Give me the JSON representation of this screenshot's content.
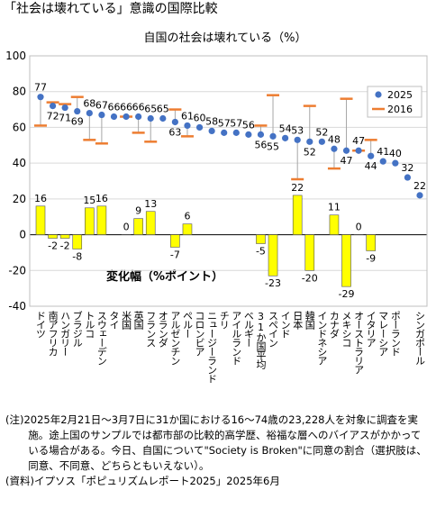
{
  "chart_data": {
    "type": "dot-bar",
    "title": "「社会は壊れている」意識の国際比較",
    "subtitle": "自国の社会は壊れている（%）",
    "bar_label": "変化幅（%ポイント）",
    "categories": [
      "ドイツ",
      "南アフリカ",
      "ハンガリー",
      "ブラジル",
      "トルコ",
      "スウェーデン",
      "タイ",
      "米国",
      "英国",
      "フランス",
      "オランダ",
      "アルゼンチン",
      "ペルー",
      "コロンビア",
      "ニュージーランド",
      "チリ",
      "アイルランド",
      "ベルギー",
      "31か国平均",
      "スペイン",
      "インド",
      "日本",
      "韓国",
      "インドネシア",
      "カナダ",
      "メキシコ",
      "オーストラリア",
      "イタリア",
      "マレーシア",
      "ポーランド",
      null,
      "シンガポール"
    ],
    "series": [
      {
        "name": "2025",
        "color": "#4472c4",
        "values": [
          77,
          72,
          71,
          69,
          68,
          67,
          66,
          66,
          66,
          65,
          65,
          63,
          61,
          60,
          58,
          57,
          57,
          56,
          56,
          55,
          54,
          53,
          52,
          52,
          48,
          47,
          47,
          44,
          41,
          40,
          32,
          22
        ]
      },
      {
        "name": "2016",
        "color": "#ed7d31",
        "values": [
          61,
          74,
          73,
          77,
          53,
          51,
          null,
          66,
          57,
          52,
          null,
          70,
          55,
          null,
          null,
          null,
          null,
          null,
          61,
          78,
          null,
          31,
          72,
          null,
          37,
          76,
          47,
          53,
          null,
          null,
          null,
          null
        ]
      },
      {
        "name": "変化幅",
        "color": "#ffff00",
        "values": [
          16,
          -2,
          -2,
          -8,
          15,
          16,
          null,
          0,
          9,
          13,
          null,
          -7,
          6,
          null,
          null,
          null,
          null,
          null,
          -5,
          -23,
          null,
          22,
          -20,
          null,
          11,
          -29,
          0,
          -9,
          null,
          null,
          null,
          null
        ]
      }
    ],
    "ylim": [
      -40,
      100
    ],
    "yticks": [
      -40,
      -20,
      0,
      20,
      40,
      60,
      80,
      100
    ],
    "grid": true,
    "legend": "upper right",
    "note": "(注)2025年2月21日～3月7日に31か国における16～74歳の23,228人を対象に調査を実施。途上国のサンプルでは都市部の比較的高学歴、裕福な層へのバイアスがかかっている場合がある。今日、自国について\"Society is Broken\"に同意の割合（選択肢は、同意、不同意、どちらともいえない）。",
    "source": "(資料)イプソス「ポピュリズムレポート2025」2025年6月"
  }
}
